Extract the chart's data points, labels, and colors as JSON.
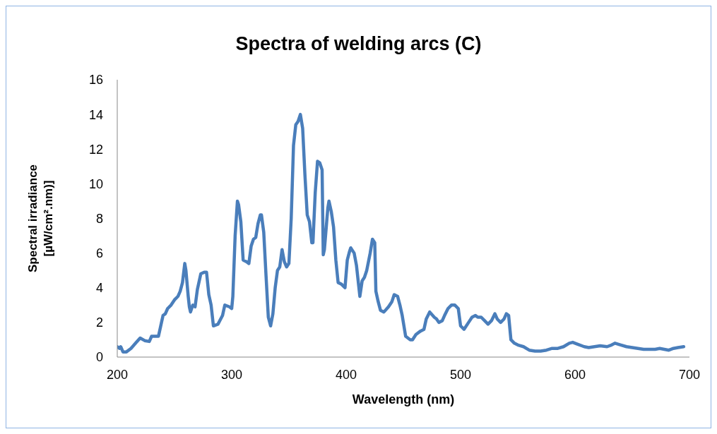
{
  "chart_data": {
    "type": "line",
    "title": "Spectra of welding arcs (C)",
    "xlabel": "Wavelength (nm)",
    "ylabel": "Spectral irradiance\n[µW/cm².nm)]",
    "xlim": [
      200,
      700
    ],
    "xticks": [
      200,
      300,
      400,
      500,
      600,
      700
    ],
    "ylim": [
      0,
      16
    ],
    "yticks": [
      0,
      2,
      4,
      6,
      8,
      10,
      12,
      14,
      16
    ],
    "grid": false,
    "legend": false,
    "marker": "none",
    "line_style": "solid",
    "series": [
      {
        "color": "#4a7ebb",
        "x": [
          200,
          202,
          203,
          205,
          208,
          212,
          216,
          220,
          224,
          228,
          230,
          236,
          238,
          240,
          242,
          244,
          247,
          250,
          253,
          255,
          257,
          259,
          260,
          262,
          263,
          264,
          266,
          268,
          270,
          273,
          276,
          278,
          280,
          282,
          284,
          288,
          292,
          294,
          298,
          300,
          301,
          303,
          305,
          306,
          308,
          310,
          313,
          315,
          317,
          319,
          321,
          323,
          325,
          326,
          328,
          330,
          332,
          334,
          336,
          338,
          340,
          342,
          344,
          346,
          348,
          350,
          352,
          354,
          356,
          358,
          360,
          362,
          364,
          366,
          368,
          370,
          371,
          373,
          375,
          377,
          379,
          380,
          381,
          384,
          385,
          387,
          389,
          391,
          393,
          396,
          399,
          401,
          403,
          404,
          407,
          409,
          411,
          412,
          414,
          416,
          418,
          421,
          423,
          425,
          426,
          428,
          430,
          433,
          437,
          440,
          442,
          445,
          447,
          449,
          452,
          456,
          458,
          461,
          465,
          468,
          470,
          473,
          477,
          479,
          481,
          484,
          486,
          489,
          492,
          495,
          498,
          500,
          503,
          507,
          510,
          513,
          515,
          518,
          521,
          524,
          527,
          530,
          532,
          535,
          538,
          540,
          542,
          544,
          547,
          550,
          555,
          560,
          565,
          570,
          575,
          580,
          585,
          590,
          595,
          598,
          602,
          608,
          612,
          617,
          622,
          628,
          632,
          635,
          640,
          645,
          650,
          655,
          660,
          665,
          670,
          674,
          678,
          682,
          686,
          690,
          695
        ],
        "values": [
          0.6,
          0.5,
          0.6,
          0.3,
          0.3,
          0.5,
          0.8,
          1.1,
          0.95,
          0.9,
          1.2,
          1.2,
          1.8,
          2.4,
          2.5,
          2.8,
          3.0,
          3.3,
          3.5,
          3.8,
          4.3,
          5.4,
          5.0,
          3.5,
          2.9,
          2.6,
          3.0,
          2.9,
          3.9,
          4.8,
          4.9,
          4.9,
          3.6,
          3.0,
          1.8,
          1.9,
          2.4,
          3.0,
          2.9,
          2.8,
          3.5,
          7.0,
          9.0,
          8.8,
          7.8,
          5.6,
          5.5,
          5.4,
          6.4,
          6.8,
          6.9,
          7.7,
          8.2,
          8.2,
          7.2,
          4.7,
          2.3,
          1.8,
          2.5,
          4.0,
          5.0,
          5.2,
          6.2,
          5.5,
          5.2,
          5.4,
          8.0,
          12.2,
          13.4,
          13.6,
          14.0,
          13.2,
          10.5,
          8.2,
          7.8,
          6.6,
          6.6,
          9.5,
          11.3,
          11.2,
          10.8,
          5.9,
          6.2,
          8.6,
          9.0,
          8.4,
          7.5,
          5.6,
          4.3,
          4.2,
          4.0,
          5.6,
          6.1,
          6.3,
          6.0,
          5.3,
          4.1,
          3.5,
          4.4,
          4.6,
          5.0,
          6.0,
          6.8,
          6.6,
          3.8,
          3.2,
          2.7,
          2.6,
          2.9,
          3.2,
          3.6,
          3.5,
          3.0,
          2.4,
          1.2,
          1.0,
          1.0,
          1.3,
          1.5,
          1.6,
          2.2,
          2.6,
          2.3,
          2.2,
          2.0,
          2.1,
          2.4,
          2.8,
          3.0,
          3.0,
          2.8,
          1.8,
          1.6,
          2.0,
          2.3,
          2.4,
          2.3,
          2.3,
          2.1,
          1.9,
          2.1,
          2.5,
          2.2,
          2.0,
          2.2,
          2.5,
          2.4,
          1.0,
          0.8,
          0.7,
          0.6,
          0.4,
          0.35,
          0.35,
          0.4,
          0.5,
          0.5,
          0.6,
          0.8,
          0.85,
          0.75,
          0.6,
          0.55,
          0.6,
          0.65,
          0.6,
          0.7,
          0.8,
          0.7,
          0.6,
          0.55,
          0.5,
          0.45,
          0.45,
          0.45,
          0.5,
          0.45,
          0.4,
          0.5,
          0.55,
          0.6
        ]
      }
    ]
  }
}
